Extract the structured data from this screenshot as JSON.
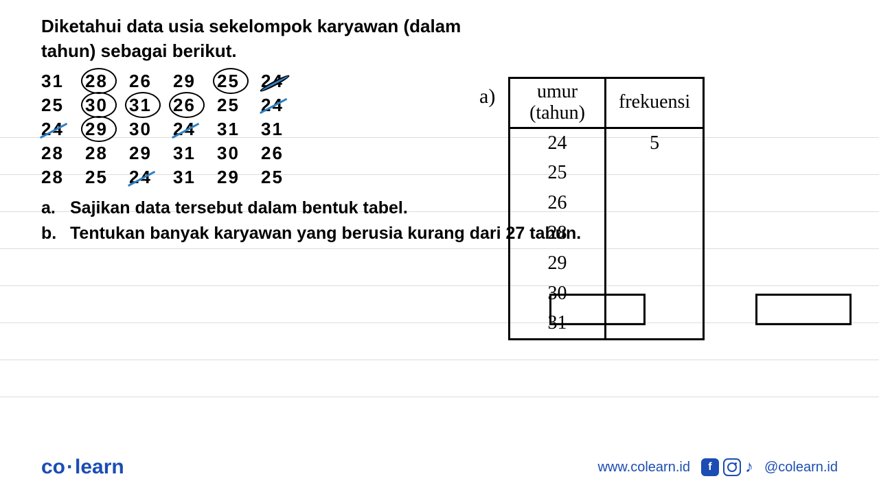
{
  "question": {
    "title_line1": "Diketahui data usia sekelompok karyawan (dalam",
    "title_line2": "tahun) sebagai berikut.",
    "data_rows": [
      [
        {
          "v": "31"
        },
        {
          "v": "28",
          "circled": true
        },
        {
          "v": "26"
        },
        {
          "v": "29"
        },
        {
          "v": "25",
          "circled": true
        },
        {
          "v": "24",
          "circled": true,
          "strike": true
        }
      ],
      [
        {
          "v": "25"
        },
        {
          "v": "30",
          "circled": true
        },
        {
          "v": "31",
          "circled": true
        },
        {
          "v": "26",
          "circled": true
        },
        {
          "v": "25"
        },
        {
          "v": "24",
          "strike": true
        }
      ],
      [
        {
          "v": "24",
          "strike": true
        },
        {
          "v": "29",
          "circled": true
        },
        {
          "v": "30"
        },
        {
          "v": "24",
          "strike": true
        },
        {
          "v": "31"
        },
        {
          "v": "31"
        }
      ],
      [
        {
          "v": "28"
        },
        {
          "v": "28"
        },
        {
          "v": "29"
        },
        {
          "v": "31"
        },
        {
          "v": "30"
        },
        {
          "v": "26"
        }
      ],
      [
        {
          "v": "28"
        },
        {
          "v": "25"
        },
        {
          "v": "24",
          "strike": true
        },
        {
          "v": "31"
        },
        {
          "v": "29"
        },
        {
          "v": "25"
        }
      ]
    ],
    "parts": [
      {
        "label": "a.",
        "text": "Sajikan data tersebut dalam bentuk tabel."
      },
      {
        "label": "b.",
        "text": "Tentukan banyak karyawan yang berusia kurang dari 27 tahun."
      }
    ]
  },
  "answer": {
    "label": "a)",
    "table": {
      "header_col1_line1": "umur",
      "header_col1_line2": "(tahun)",
      "header_col2": "frekuensi",
      "rows": [
        {
          "age": "24",
          "freq": "5"
        },
        {
          "age": "25",
          "freq": ""
        },
        {
          "age": "26",
          "freq": ""
        },
        {
          "age": "28",
          "freq": ""
        },
        {
          "age": "29",
          "freq": ""
        },
        {
          "age": "30",
          "freq": ""
        },
        {
          "age": "31",
          "freq": ""
        }
      ]
    }
  },
  "ruled_line_positions": [
    0,
    54,
    108,
    162,
    216,
    270,
    324,
    378
  ],
  "footer": {
    "logo_part1": "co",
    "logo_part2": "learn",
    "url": "www.colearn.id",
    "handle": "@colearn.id"
  },
  "colors": {
    "brand": "#1b4db3",
    "strike": "#2e7fc4",
    "rule": "#dcdcdc"
  }
}
